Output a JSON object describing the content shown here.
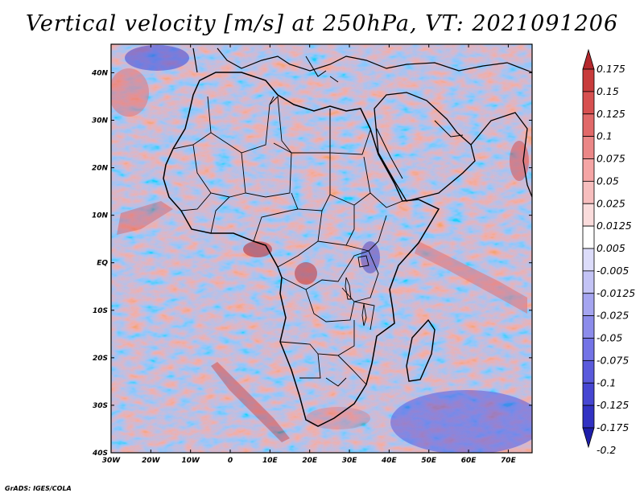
{
  "title": "Vertical velocity [m/s] at 250hPa, VT: 2021091206",
  "footer": "GrADS: IGES/COLA",
  "map": {
    "region": "Africa",
    "lon_range": [
      -30,
      76
    ],
    "lat_range": [
      -40,
      46
    ],
    "lon_ticks": [
      "30W",
      "20W",
      "10W",
      "0",
      "10E",
      "20E",
      "30E",
      "40E",
      "50E",
      "60E",
      "70E"
    ],
    "lat_ticks": [
      "40N",
      "30N",
      "20N",
      "10N",
      "EQ",
      "10S",
      "20S",
      "30S",
      "40S"
    ]
  },
  "colorbar": {
    "labels": [
      "0.175",
      "0.15",
      "0.125",
      "0.1",
      "0.075",
      "0.05",
      "0.025",
      "0.0125",
      "0.005",
      "-0.005",
      "-0.0125",
      "-0.025",
      "-0.05",
      "-0.075",
      "-0.1",
      "-0.125",
      "-0.175",
      "-0.2"
    ],
    "colors": [
      "#b4282d",
      "#c83c3c",
      "#d75050",
      "#e16969",
      "#eb8787",
      "#f5a5a5",
      "#f7bebe",
      "#fadcdc",
      "#ffffff",
      "#dcdcfa",
      "#c3c3f5",
      "#a5a5f0",
      "#8c8ceb",
      "#7373e6",
      "#5a5adc",
      "#4646d2",
      "#3232c3",
      "#1e1eaa"
    ]
  }
}
